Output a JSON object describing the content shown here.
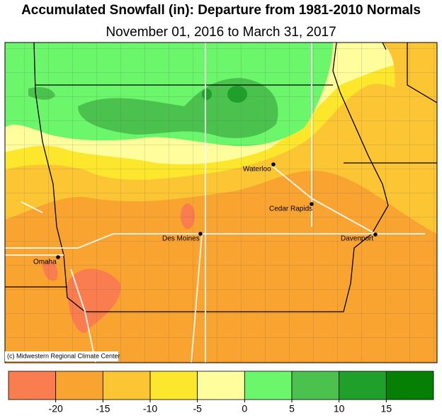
{
  "header": {
    "title": "Accumulated Snowfall (in): Departure from 1981-2010 Normals",
    "subtitle": "November 01, 2016 to March 31, 2017"
  },
  "cities": [
    {
      "label": "Waterloo"
    },
    {
      "label": "Cedar Rapids"
    },
    {
      "label": "Des Moines"
    },
    {
      "label": "Davenport"
    },
    {
      "label": "Omaha"
    }
  ],
  "credit": "(c) Midwestern Regional Climate Center",
  "legend": {
    "colors": [
      "#f97d4e",
      "#f9a431",
      "#fbc534",
      "#fde72d",
      "#fffd9c",
      "#6cf66b",
      "#4bc24d",
      "#1fa02a",
      "#058005"
    ],
    "ticks": [
      -20,
      -15,
      -10,
      -5,
      0,
      5,
      10,
      15
    ]
  }
}
